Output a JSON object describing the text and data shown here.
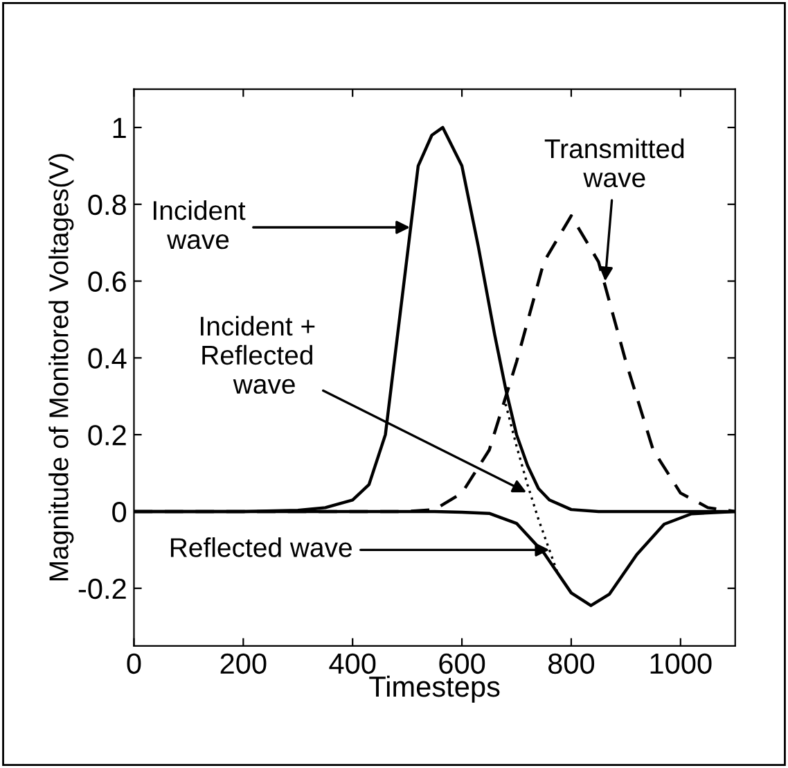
{
  "chart_data": {
    "type": "line",
    "xlabel": "Timesteps",
    "ylabel": "Magnitude of Monitored Voltages(V)",
    "xlim": [
      0,
      1100
    ],
    "xticks": [
      0,
      200,
      400,
      600,
      800,
      1000
    ],
    "ylim": [
      -0.35,
      1.1
    ],
    "yticks": [
      -0.2,
      0,
      0.2,
      0.4,
      0.6,
      0.8,
      1
    ],
    "grid": false,
    "legend": false,
    "marker": "none",
    "series": [
      {
        "color": "#000000",
        "line_style": "solid",
        "x": [
          0,
          200,
          300,
          350,
          400,
          430,
          460,
          490,
          520,
          545,
          565,
          600,
          630,
          660,
          680,
          700,
          720,
          740,
          760,
          800,
          850,
          1100
        ],
        "values": [
          0,
          0,
          0.003,
          0.01,
          0.03,
          0.07,
          0.2,
          0.55,
          0.9,
          0.98,
          1,
          0.9,
          0.69,
          0.46,
          0.32,
          0.2,
          0.12,
          0.06,
          0.03,
          0.005,
          0,
          0
        ]
      },
      {
        "color": "#000000",
        "line_style": "dashed",
        "x": [
          0,
          500,
          550,
          600,
          650,
          700,
          750,
          800,
          850,
          900,
          950,
          1000,
          1050,
          1100
        ],
        "values": [
          0,
          0,
          0.005,
          0.048,
          0.16,
          0.39,
          0.65,
          0.77,
          0.65,
          0.39,
          0.16,
          0.048,
          0.01,
          0
        ]
      },
      {
        "color": "#000000",
        "line_style": "solid",
        "x": [
          0,
          550,
          600,
          650,
          700,
          750,
          800,
          836,
          870,
          920,
          970,
          1020,
          1100
        ],
        "values": [
          0,
          0,
          -0.002,
          -0.005,
          -0.031,
          -0.108,
          -0.212,
          -0.245,
          -0.215,
          -0.112,
          -0.033,
          -0.006,
          0
        ]
      },
      {
        "color": "#000000",
        "line_style": "dotted",
        "x": [
          680,
          700,
          720,
          740,
          760,
          775
        ],
        "values": [
          0.28,
          0.17,
          0.07,
          -0.02,
          -0.1,
          -0.16
        ]
      }
    ],
    "annotations": [
      {
        "text": "Incident\nwave",
        "x": 505,
        "y": 0.74
      },
      {
        "text": "Transmitted\nwave",
        "x": 862,
        "y": 0.6
      },
      {
        "text": "Incident +\nReflected\n  wave",
        "x": 718,
        "y": 0.05
      },
      {
        "text": "Reflected wave",
        "x": 760,
        "y": -0.1
      }
    ]
  }
}
